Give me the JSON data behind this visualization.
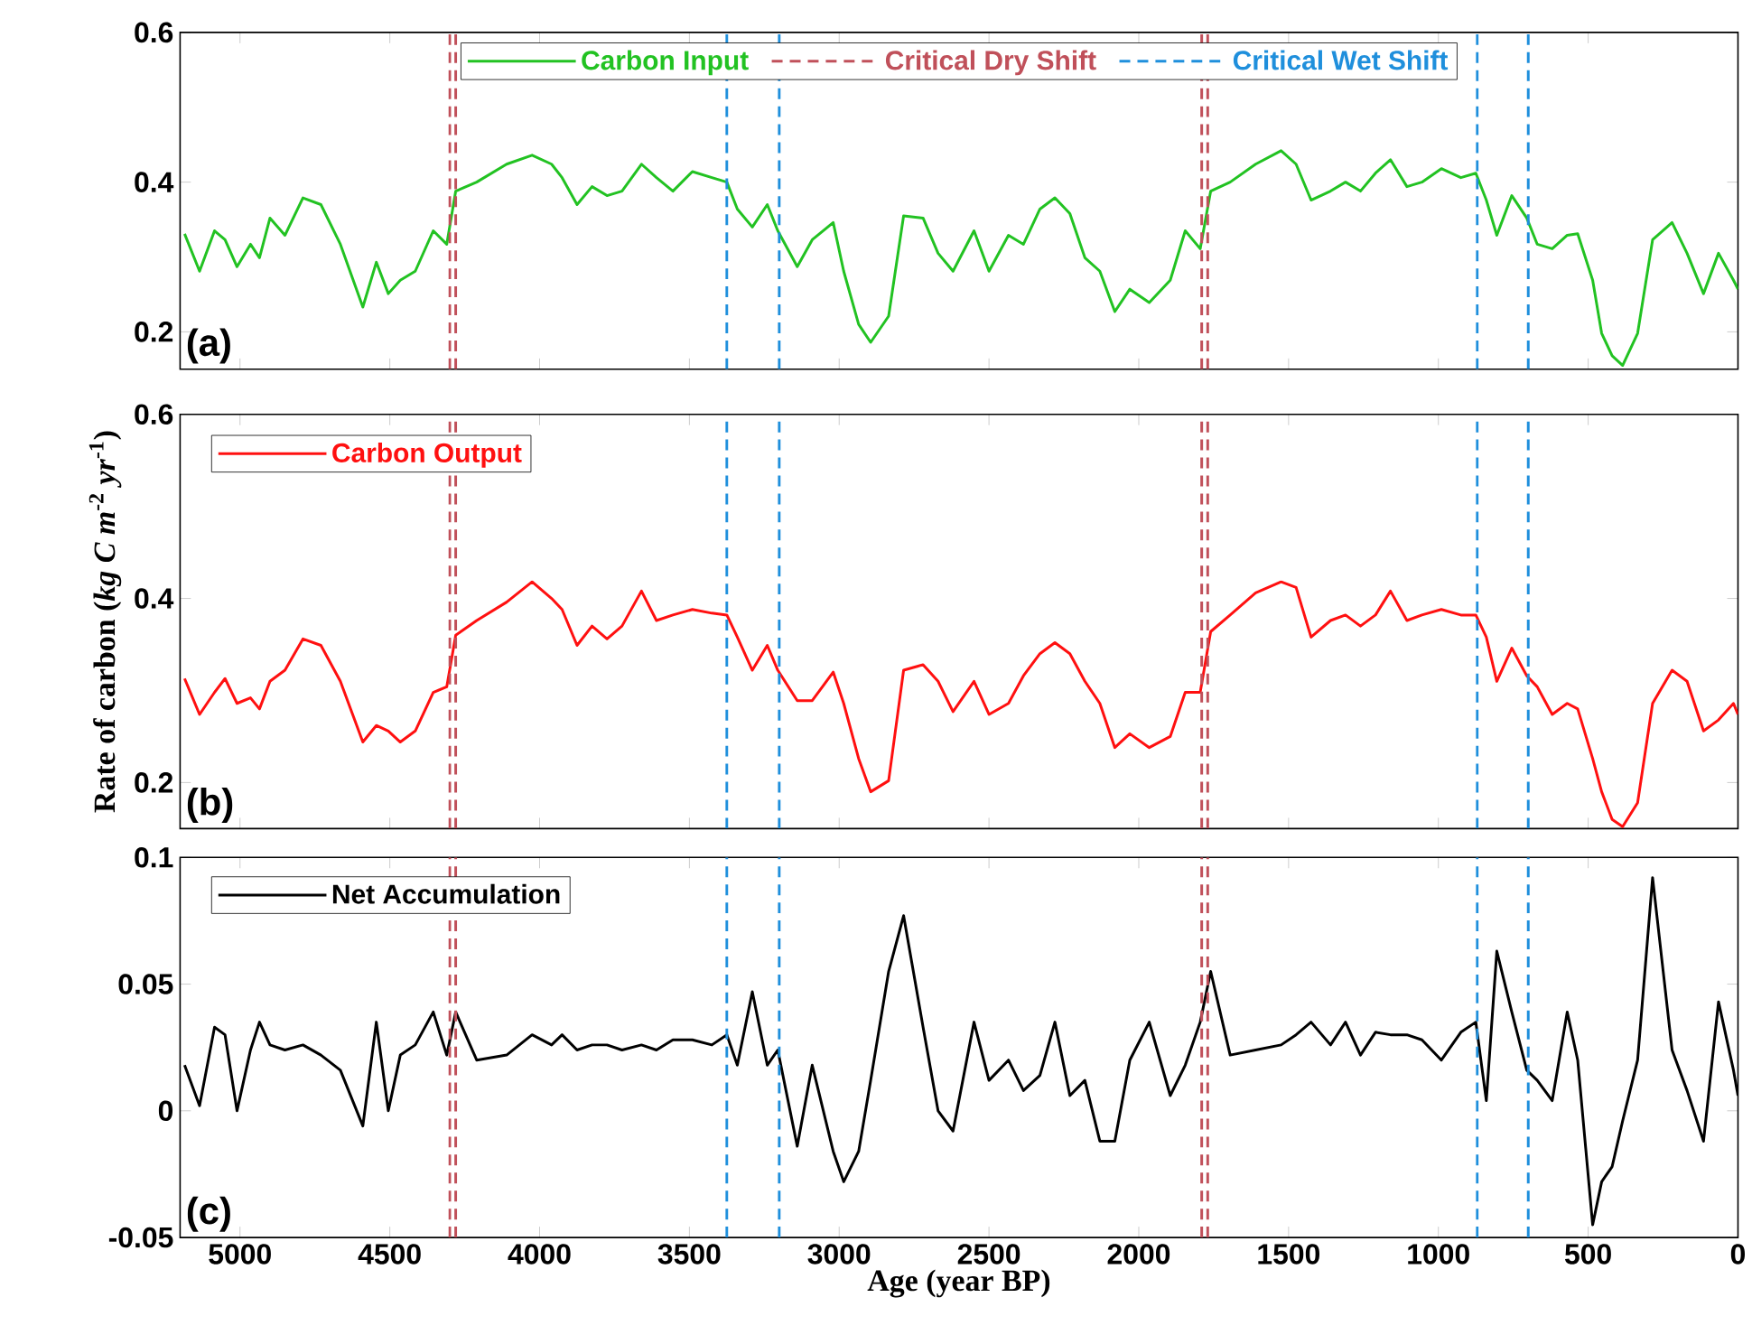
{
  "chart_data": [
    {
      "type": "line",
      "xlim": [
        5200,
        0
      ],
      "ylim": [
        0.15,
        0.6
      ],
      "xticks": [
        5000,
        4500,
        4000,
        3500,
        3000,
        2500,
        2000,
        1500,
        1000,
        500,
        0
      ],
      "yticks": [
        0.2,
        0.4,
        0.6
      ],
      "tick_labels": "y",
      "legend": "top",
      "annotations": [
        "(a)"
      ],
      "x": [
        5185,
        5135,
        5085,
        5050,
        5010,
        4965,
        4935,
        4900,
        4850,
        4790,
        4730,
        4665,
        4590,
        4545,
        4505,
        4465,
        4415,
        4355,
        4310,
        4280,
        4210,
        4110,
        4025,
        3960,
        3925,
        3875,
        3825,
        3775,
        3725,
        3660,
        3610,
        3555,
        3490,
        3425,
        3375,
        3340,
        3290,
        3240,
        3205,
        3140,
        3090,
        3020,
        2985,
        2935,
        2895,
        2835,
        2785,
        2720,
        2670,
        2620,
        2550,
        2500,
        2435,
        2385,
        2330,
        2280,
        2230,
        2180,
        2130,
        2080,
        2030,
        1965,
        1895,
        1845,
        1795,
        1760,
        1695,
        1610,
        1525,
        1475,
        1425,
        1360,
        1310,
        1260,
        1210,
        1160,
        1105,
        1055,
        990,
        925,
        875,
        840,
        805,
        755,
        705,
        670,
        620,
        570,
        535,
        485,
        455,
        420,
        385,
        335,
        285,
        220,
        170,
        115,
        65,
        15,
        0
      ],
      "series": [
        {
          "name": "Carbon Input",
          "color": "#22c222",
          "values": [
            0.331,
            0.281,
            0.335,
            0.323,
            0.287,
            0.317,
            0.299,
            0.352,
            0.329,
            0.379,
            0.37,
            0.317,
            0.233,
            0.293,
            0.251,
            0.269,
            0.281,
            0.335,
            0.317,
            0.388,
            0.4,
            0.424,
            0.436,
            0.424,
            0.406,
            0.37,
            0.394,
            0.382,
            0.388,
            0.424,
            0.406,
            0.388,
            0.414,
            0.406,
            0.4,
            0.364,
            0.34,
            0.37,
            0.335,
            0.287,
            0.323,
            0.346,
            0.281,
            0.21,
            0.186,
            0.221,
            0.355,
            0.352,
            0.305,
            0.281,
            0.335,
            0.281,
            0.329,
            0.317,
            0.364,
            0.379,
            0.358,
            0.299,
            0.281,
            0.227,
            0.257,
            0.239,
            0.269,
            0.335,
            0.311,
            0.388,
            0.4,
            0.424,
            0.442,
            0.424,
            0.376,
            0.388,
            0.4,
            0.388,
            0.412,
            0.43,
            0.394,
            0.4,
            0.418,
            0.406,
            0.412,
            0.376,
            0.329,
            0.382,
            0.352,
            0.317,
            0.311,
            0.329,
            0.331,
            0.269,
            0.198,
            0.168,
            0.155,
            0.198,
            0.323,
            0.346,
            0.305,
            0.251,
            0.305,
            0.269,
            0.257
          ]
        }
      ],
      "ref_lines": [
        {
          "axis": "x",
          "value": 4300,
          "label": "Critical Dry Shift",
          "color": "#c0505a",
          "line_style": "dashed"
        },
        {
          "axis": "x",
          "value": 4280,
          "color": "#c0505a",
          "line_style": "dashed"
        },
        {
          "axis": "x",
          "value": 1790,
          "color": "#c0505a",
          "line_style": "dashed"
        },
        {
          "axis": "x",
          "value": 1770,
          "color": "#c0505a",
          "line_style": "dashed"
        },
        {
          "axis": "x",
          "value": 3375,
          "label": "Critical Wet Shift",
          "color": "#1f8fdc",
          "line_style": "dashed"
        },
        {
          "axis": "x",
          "value": 3200,
          "color": "#1f8fdc",
          "line_style": "dashed"
        },
        {
          "axis": "x",
          "value": 870,
          "color": "#1f8fdc",
          "line_style": "dashed"
        },
        {
          "axis": "x",
          "value": 700,
          "color": "#1f8fdc",
          "line_style": "dashed"
        }
      ]
    },
    {
      "type": "line",
      "xlim": [
        5200,
        0
      ],
      "ylim": [
        0.15,
        0.6
      ],
      "xticks": [
        5000,
        4500,
        4000,
        3500,
        3000,
        2500,
        2000,
        1500,
        1000,
        500,
        0
      ],
      "yticks": [
        0.2,
        0.4,
        0.6
      ],
      "tick_labels": "y",
      "legend": "top left",
      "annotations": [
        "(b)"
      ],
      "ylabel": "Rate of carbon (*kg C m*$^{-2}$ *yr*$^{-1}$)",
      "x": [
        5185,
        5135,
        5085,
        5050,
        5010,
        4965,
        4935,
        4900,
        4850,
        4790,
        4730,
        4665,
        4590,
        4545,
        4505,
        4465,
        4415,
        4355,
        4310,
        4280,
        4210,
        4110,
        4025,
        3960,
        3925,
        3875,
        3825,
        3775,
        3725,
        3660,
        3610,
        3555,
        3490,
        3425,
        3375,
        3340,
        3290,
        3240,
        3205,
        3140,
        3090,
        3020,
        2985,
        2935,
        2895,
        2835,
        2785,
        2720,
        2670,
        2620,
        2550,
        2500,
        2435,
        2385,
        2330,
        2280,
        2230,
        2180,
        2130,
        2080,
        2030,
        1965,
        1895,
        1845,
        1795,
        1760,
        1695,
        1610,
        1525,
        1475,
        1425,
        1360,
        1310,
        1260,
        1210,
        1160,
        1105,
        1055,
        990,
        925,
        875,
        840,
        805,
        755,
        705,
        670,
        620,
        570,
        535,
        485,
        455,
        420,
        385,
        335,
        285,
        220,
        170,
        115,
        65,
        15,
        0
      ],
      "series": [
        {
          "name": "Carbon Output",
          "color": "#ff1010",
          "values": [
            0.313,
            0.274,
            0.298,
            0.313,
            0.286,
            0.292,
            0.28,
            0.31,
            0.322,
            0.356,
            0.349,
            0.31,
            0.244,
            0.262,
            0.256,
            0.244,
            0.256,
            0.298,
            0.304,
            0.36,
            0.376,
            0.396,
            0.418,
            0.4,
            0.388,
            0.349,
            0.37,
            0.356,
            0.37,
            0.408,
            0.376,
            0.382,
            0.388,
            0.384,
            0.382,
            0.358,
            0.322,
            0.349,
            0.322,
            0.289,
            0.289,
            0.32,
            0.286,
            0.226,
            0.19,
            0.202,
            0.322,
            0.328,
            0.31,
            0.277,
            0.31,
            0.274,
            0.286,
            0.316,
            0.34,
            0.352,
            0.34,
            0.31,
            0.286,
            0.238,
            0.253,
            0.238,
            0.25,
            0.298,
            0.298,
            0.364,
            0.382,
            0.406,
            0.418,
            0.412,
            0.358,
            0.376,
            0.382,
            0.37,
            0.382,
            0.408,
            0.376,
            0.382,
            0.388,
            0.382,
            0.382,
            0.358,
            0.31,
            0.346,
            0.316,
            0.304,
            0.274,
            0.286,
            0.28,
            0.226,
            0.19,
            0.16,
            0.152,
            0.178,
            0.286,
            0.322,
            0.31,
            0.256,
            0.268,
            0.286,
            0.274
          ]
        }
      ],
      "ref_lines": [
        {
          "axis": "x",
          "value": 4300,
          "color": "#c0505a",
          "line_style": "dashed"
        },
        {
          "axis": "x",
          "value": 4280,
          "color": "#c0505a",
          "line_style": "dashed"
        },
        {
          "axis": "x",
          "value": 1790,
          "color": "#c0505a",
          "line_style": "dashed"
        },
        {
          "axis": "x",
          "value": 1770,
          "color": "#c0505a",
          "line_style": "dashed"
        },
        {
          "axis": "x",
          "value": 3375,
          "color": "#1f8fdc",
          "line_style": "dashed"
        },
        {
          "axis": "x",
          "value": 3200,
          "color": "#1f8fdc",
          "line_style": "dashed"
        },
        {
          "axis": "x",
          "value": 870,
          "color": "#1f8fdc",
          "line_style": "dashed"
        },
        {
          "axis": "x",
          "value": 700,
          "color": "#1f8fdc",
          "line_style": "dashed"
        }
      ]
    },
    {
      "type": "line",
      "xlim": [
        5200,
        0
      ],
      "ylim": [
        -0.05,
        0.1
      ],
      "xticks": [
        5000,
        4500,
        4000,
        3500,
        3000,
        2500,
        2000,
        1500,
        1000,
        500,
        0
      ],
      "yticks": [
        -0.05,
        0,
        0.05,
        0.1
      ],
      "legend": "top left",
      "annotations": [
        "(c)"
      ],
      "xlabel": "Age (year BP)",
      "x": [
        5185,
        5135,
        5085,
        5050,
        5010,
        4965,
        4935,
        4900,
        4850,
        4790,
        4730,
        4665,
        4590,
        4545,
        4505,
        4465,
        4415,
        4355,
        4310,
        4280,
        4210,
        4110,
        4025,
        3960,
        3925,
        3875,
        3825,
        3775,
        3725,
        3660,
        3610,
        3555,
        3490,
        3425,
        3375,
        3340,
        3290,
        3240,
        3205,
        3140,
        3090,
        3020,
        2985,
        2935,
        2895,
        2835,
        2785,
        2720,
        2670,
        2620,
        2550,
        2500,
        2435,
        2385,
        2330,
        2280,
        2230,
        2180,
        2130,
        2080,
        2030,
        1965,
        1895,
        1845,
        1795,
        1760,
        1695,
        1610,
        1525,
        1475,
        1425,
        1360,
        1310,
        1260,
        1210,
        1160,
        1105,
        1055,
        990,
        925,
        875,
        840,
        805,
        755,
        705,
        670,
        620,
        570,
        535,
        485,
        455,
        420,
        385,
        335,
        285,
        220,
        170,
        115,
        65,
        15,
        0
      ],
      "series": [
        {
          "name": "Net Accumulation",
          "color": "#000000",
          "values": [
            0.018,
            0.002,
            0.033,
            0.03,
            0.0,
            0.024,
            0.035,
            0.026,
            0.024,
            0.026,
            0.022,
            0.016,
            -0.006,
            0.035,
            0.0,
            0.022,
            0.026,
            0.039,
            0.022,
            0.039,
            0.02,
            0.022,
            0.03,
            0.026,
            0.03,
            0.024,
            0.026,
            0.026,
            0.024,
            0.026,
            0.024,
            0.028,
            0.028,
            0.026,
            0.03,
            0.018,
            0.047,
            0.018,
            0.024,
            -0.014,
            0.018,
            -0.016,
            -0.028,
            -0.016,
            0.012,
            0.055,
            0.077,
            0.033,
            0.0,
            -0.008,
            0.035,
            0.012,
            0.02,
            0.008,
            0.014,
            0.035,
            0.006,
            0.012,
            -0.012,
            -0.012,
            0.02,
            0.035,
            0.006,
            0.018,
            0.035,
            0.055,
            0.022,
            0.024,
            0.026,
            0.03,
            0.035,
            0.026,
            0.035,
            0.022,
            0.031,
            0.03,
            0.03,
            0.028,
            0.02,
            0.031,
            0.035,
            0.004,
            0.063,
            0.039,
            0.016,
            0.012,
            0.004,
            0.039,
            0.02,
            -0.045,
            -0.028,
            -0.022,
            -0.004,
            0.02,
            0.092,
            0.024,
            0.008,
            -0.012,
            0.043,
            0.016,
            0.006
          ]
        }
      ],
      "ref_lines": [
        {
          "axis": "x",
          "value": 4300,
          "color": "#c0505a",
          "line_style": "dashed"
        },
        {
          "axis": "x",
          "value": 4280,
          "color": "#c0505a",
          "line_style": "dashed"
        },
        {
          "axis": "x",
          "value": 1790,
          "color": "#c0505a",
          "line_style": "dashed"
        },
        {
          "axis": "x",
          "value": 1770,
          "color": "#c0505a",
          "line_style": "dashed"
        },
        {
          "axis": "x",
          "value": 3375,
          "color": "#1f8fdc",
          "line_style": "dashed"
        },
        {
          "axis": "x",
          "value": 3200,
          "color": "#1f8fdc",
          "line_style": "dashed"
        },
        {
          "axis": "x",
          "value": 870,
          "color": "#1f8fdc",
          "line_style": "dashed"
        },
        {
          "axis": "x",
          "value": 700,
          "color": "#1f8fdc",
          "line_style": "dashed"
        }
      ]
    }
  ]
}
